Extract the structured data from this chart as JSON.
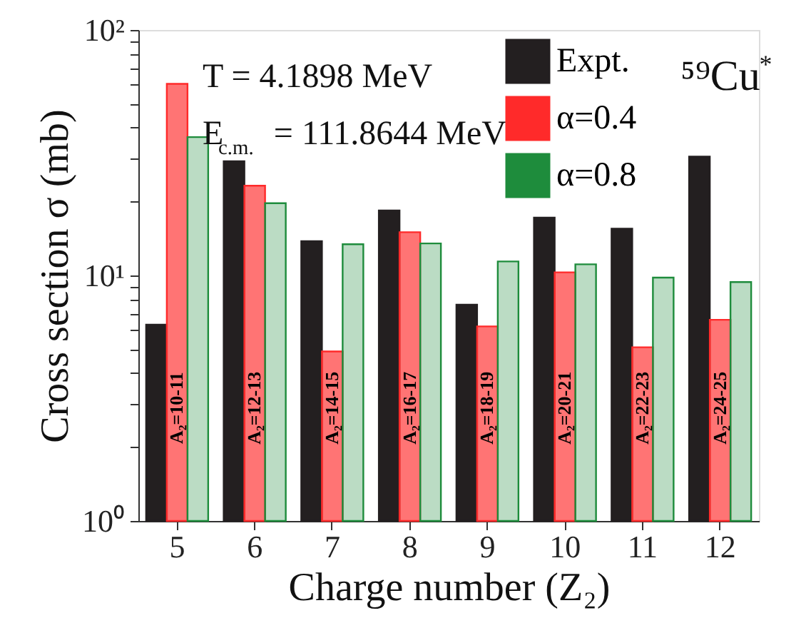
{
  "chart_data": {
    "type": "bar",
    "xlabel": "Charge number (Z₂)",
    "ylabel": "Cross section σ (mb)",
    "categories": [
      "5",
      "6",
      "7",
      "8",
      "9",
      "10",
      "11",
      "12"
    ],
    "series": [
      {
        "name": "Expt.",
        "color": "#231f20",
        "values": [
          6.3,
          29.2,
          13.8,
          18.4,
          7.6,
          17.2,
          15.5,
          30.5
        ]
      },
      {
        "name": "α=0.4",
        "color": "#ff2a2a",
        "values": [
          60.3,
          23.2,
          4.9,
          15.0,
          6.2,
          10.3,
          5.1,
          6.6
        ]
      },
      {
        "name": "α=0.8",
        "color": "#1e8c3c",
        "values": [
          36.6,
          19.7,
          13.4,
          13.5,
          11.4,
          11.1,
          9.8,
          9.4
        ]
      }
    ],
    "log": true,
    "ylim": [
      1,
      100
    ],
    "yticks": [
      {
        "value": 1,
        "label": "10⁰"
      },
      {
        "value": 2,
        "label": null
      },
      {
        "value": 3,
        "label": null
      },
      {
        "value": 4,
        "label": null
      },
      {
        "value": 5,
        "label": null
      },
      {
        "value": 6,
        "label": null
      },
      {
        "value": 7,
        "label": null
      },
      {
        "value": 8,
        "label": null
      },
      {
        "value": 9,
        "label": null
      },
      {
        "value": 10,
        "label": "10¹"
      },
      {
        "value": 20,
        "label": null
      },
      {
        "value": 30,
        "label": null
      },
      {
        "value": 40,
        "label": null
      },
      {
        "value": 50,
        "label": null
      },
      {
        "value": 60,
        "label": null
      },
      {
        "value": 70,
        "label": null
      },
      {
        "value": 80,
        "label": null
      },
      {
        "value": 90,
        "label": null
      },
      {
        "value": 100,
        "label": "10²"
      }
    ],
    "grid": false,
    "legend": "top right",
    "annotations": [
      "T = 4.1898 MeV",
      "E$_{c.m.}$ = 111.8644 MeV",
      "⁵⁹Cu$^{*}$",
      "A₂=10-11",
      "A₂=12-13",
      "A₂=14-15",
      "A₂=16-17",
      "A₂=18-19",
      "A₂=20-21",
      "A₂=22-23",
      "A₂=24-25"
    ]
  }
}
